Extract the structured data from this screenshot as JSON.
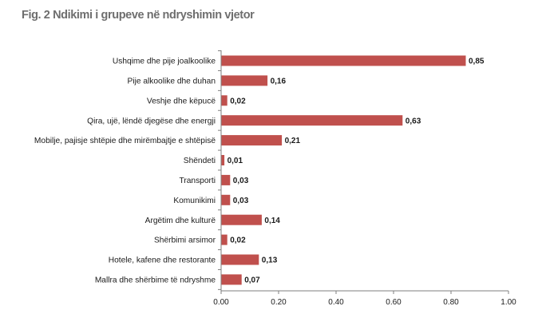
{
  "chart_data": {
    "type": "bar",
    "orientation": "horizontal",
    "title": "Fig. 2 Ndikimi i grupeve në ndryshimin vjetor",
    "categories": [
      "Ushqime dhe pije joalkoolike",
      "Pije alkoolike dhe duhan",
      "Veshje dhe këpucë",
      "Qira, ujë, lëndë djegëse dhe energji",
      "Mobilje, pajisje shtëpie dhe mirëmbajtje e shtëpisë",
      "Shëndeti",
      "Transporti",
      "Komunikimi",
      "Argëtim dhe kulturë",
      "Shërbimi arsimor",
      "Hotele, kafene dhe restorante",
      "Mallra dhe shërbime të ndryshme"
    ],
    "values": [
      0.85,
      0.16,
      0.02,
      0.63,
      0.21,
      0.01,
      0.03,
      0.03,
      0.14,
      0.02,
      0.13,
      0.07
    ],
    "value_labels": [
      "0,85",
      "0,16",
      "0,02",
      "0,63",
      "0,21",
      "0,01",
      "0,03",
      "0,03",
      "0,14",
      "0,02",
      "0,13",
      "0,07"
    ],
    "xticks": [
      "0.00",
      "0.20",
      "0.40",
      "0.60",
      "0.80",
      "1.00"
    ],
    "xtick_values": [
      0,
      0.2,
      0.4,
      0.6,
      0.8,
      1.0
    ],
    "xlim": [
      0,
      1.0
    ],
    "xlabel": "",
    "ylabel": "",
    "grid": false,
    "legend": "none",
    "bar_color": "#c0504d",
    "axis_color": "#7f7f7f"
  }
}
